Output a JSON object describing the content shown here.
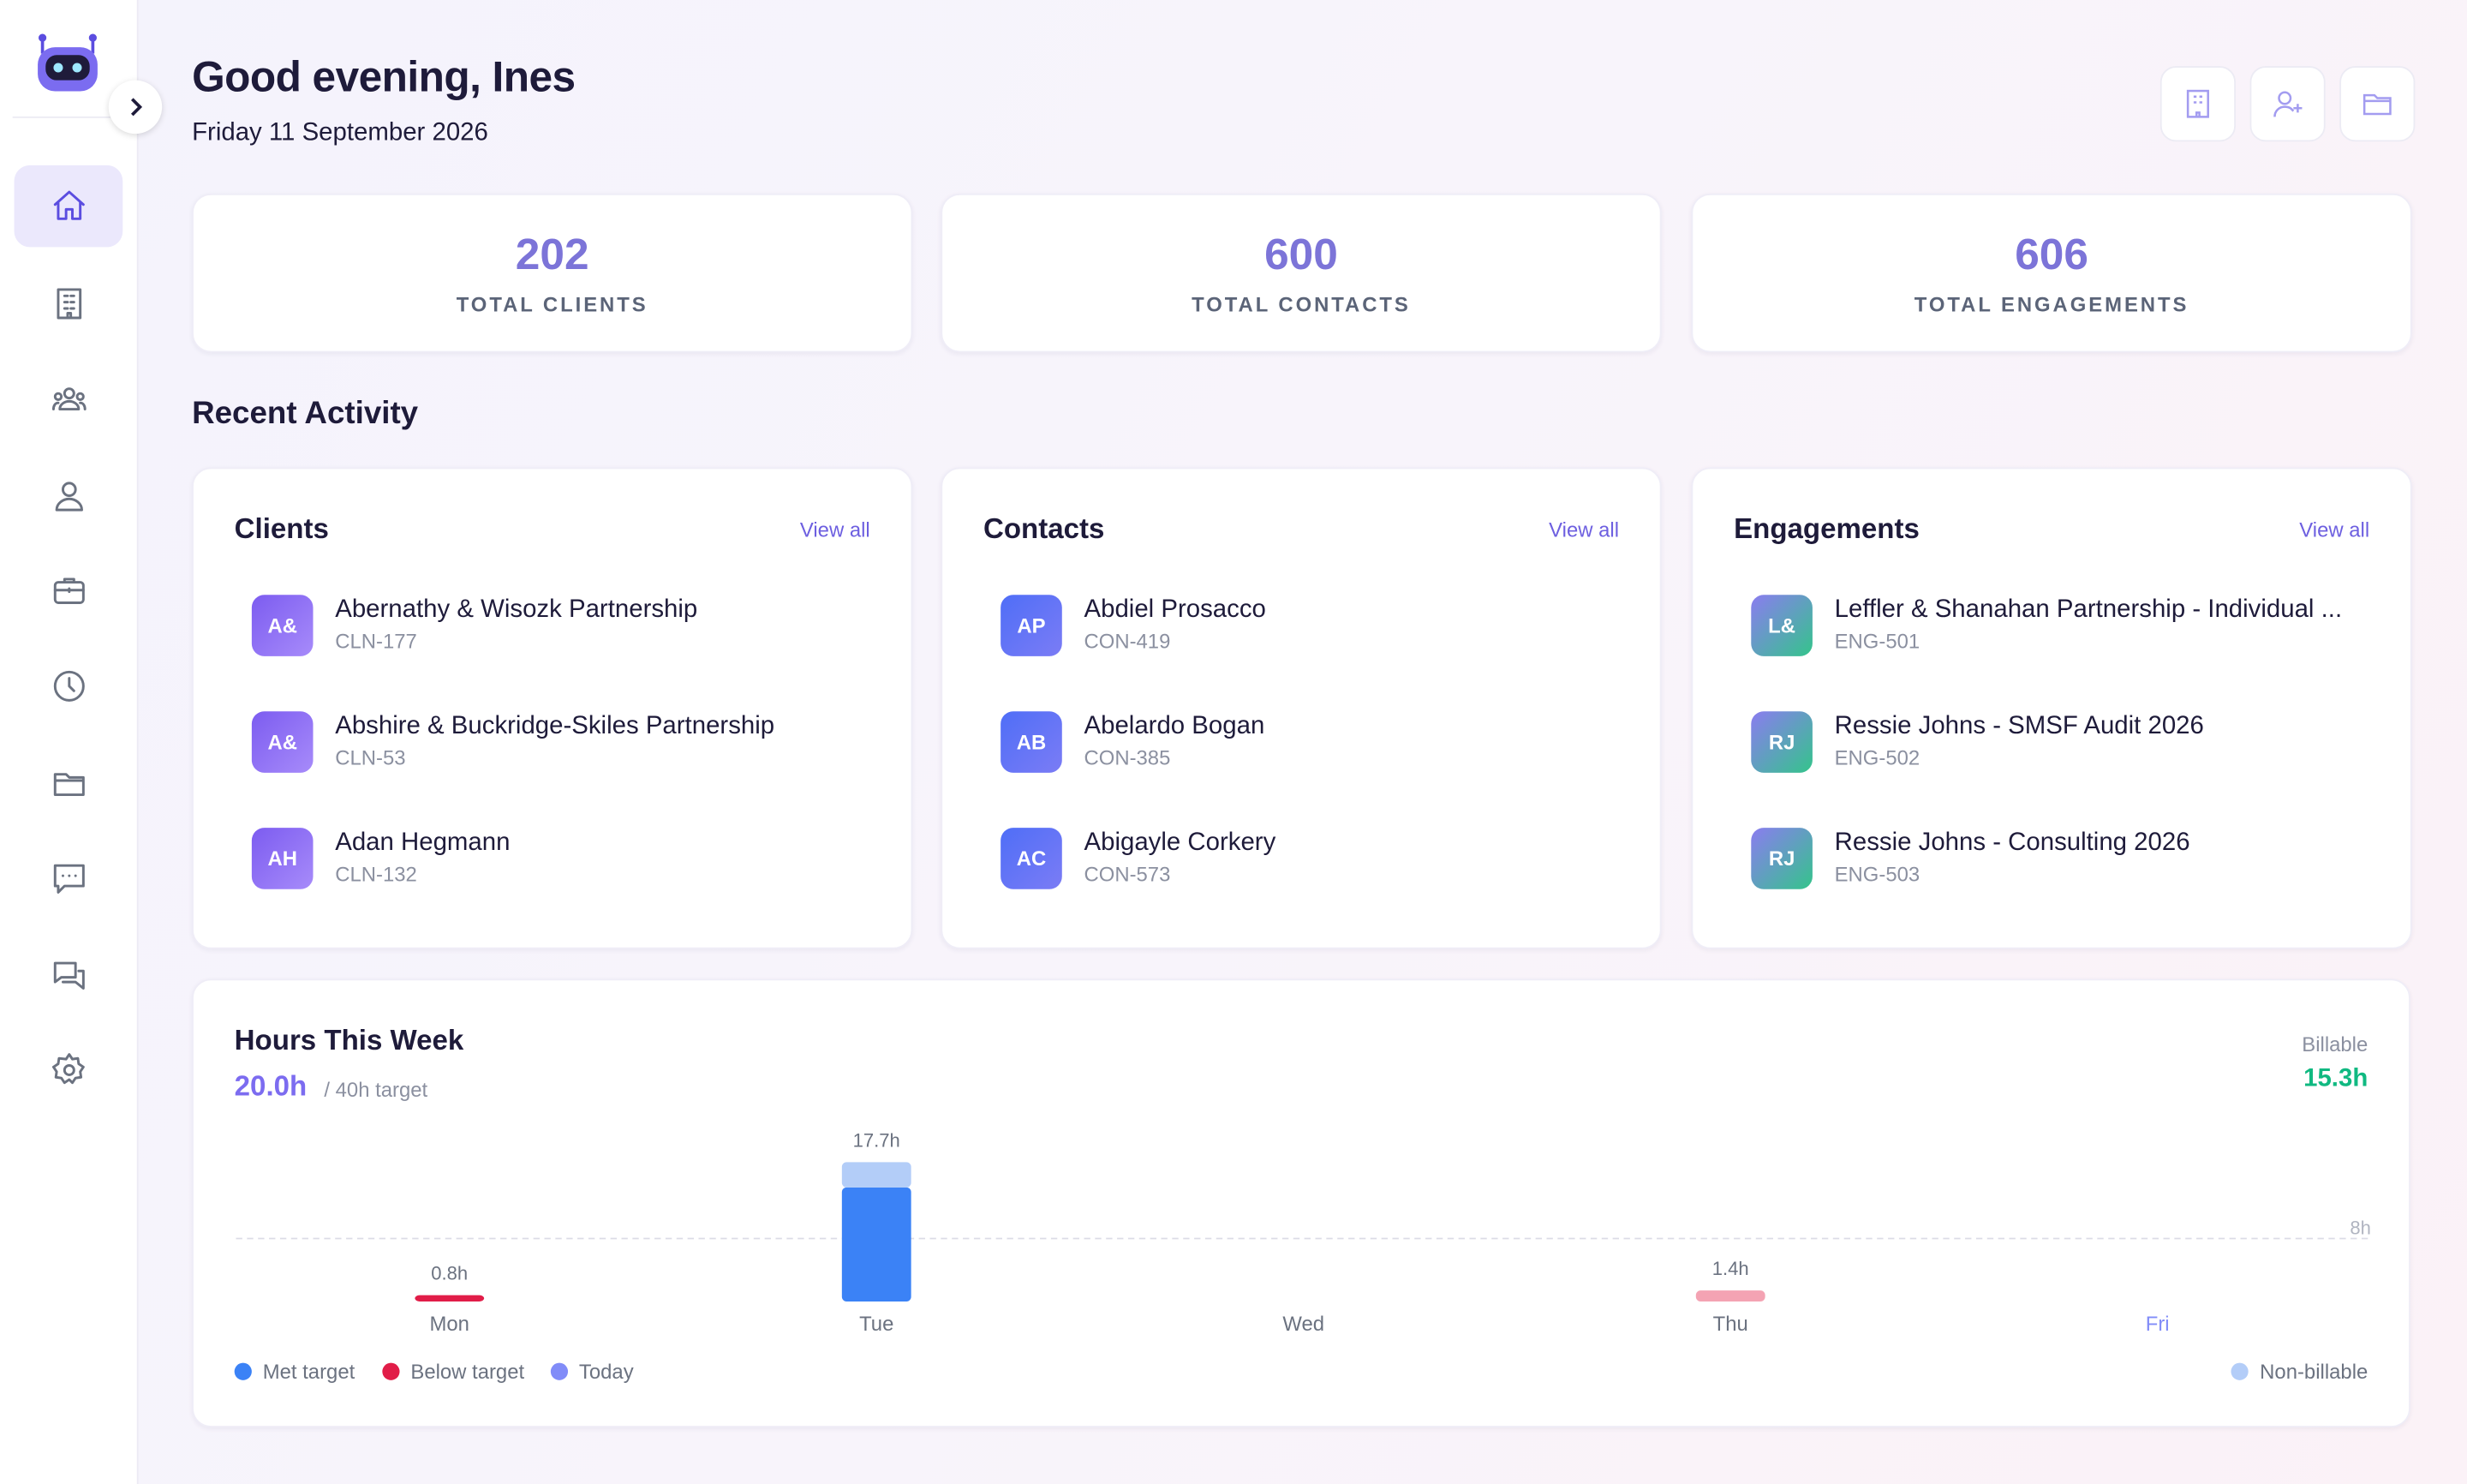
{
  "header": {
    "greeting": "Good evening, Ines",
    "date": "Friday 11 September 2026"
  },
  "stats": [
    {
      "value": 202,
      "label": "TOTAL CLIENTS"
    },
    {
      "value": 600,
      "label": "TOTAL CONTACTS"
    },
    {
      "value": 606,
      "label": "TOTAL ENGAGEMENTS"
    }
  ],
  "recent_activity": {
    "title": "Recent Activity",
    "panels": [
      {
        "title": "Clients",
        "link": "View all",
        "items": [
          {
            "initials": "A&",
            "name": "Abernathy & Wisozk Partnership",
            "code": "CLN-177"
          },
          {
            "initials": "A&",
            "name": "Abshire & Buckridge-Skiles Partnership",
            "code": "CLN-53"
          },
          {
            "initials": "AH",
            "name": "Adan Hegmann",
            "code": "CLN-132"
          }
        ]
      },
      {
        "title": "Contacts",
        "link": "View all",
        "items": [
          {
            "initials": "AP",
            "name": "Abdiel Prosacco",
            "code": "CON-419"
          },
          {
            "initials": "AB",
            "name": "Abelardo Bogan",
            "code": "CON-385"
          },
          {
            "initials": "AC",
            "name": "Abigayle Corkery",
            "code": "CON-573"
          }
        ]
      },
      {
        "title": "Engagements",
        "link": "View all",
        "items": [
          {
            "initials": "L&",
            "name": "Leffler & Shanahan Partnership - Individual ...",
            "code": "ENG-501"
          },
          {
            "initials": "RJ",
            "name": "Ressie Johns - SMSF Audit 2026",
            "code": "ENG-502"
          },
          {
            "initials": "RJ",
            "name": "Ressie Johns - Consulting 2026",
            "code": "ENG-503"
          }
        ]
      }
    ]
  },
  "chart_data": {
    "type": "bar",
    "title": "Hours This Week",
    "summary": "20.0h",
    "target": "/ 40h target",
    "billable_total": "15.3h",
    "categories": [
      "Mon",
      "Tue",
      "Wed",
      "Thu",
      "Fri"
    ],
    "values": [
      0.8,
      17.7,
      null,
      1.4,
      null
    ],
    "value_labels": [
      "0.8h",
      "17.7h",
      null,
      "1.4h",
      null
    ],
    "series": [
      {
        "name": "Billable",
        "color": "#3b82f6",
        "values": [
          0.8,
          14.5,
          null,
          null,
          null
        ],
        "colors": [
          "#e11d48",
          "#3b82f6",
          null,
          null,
          null
        ]
      },
      {
        "name": "Non-billable",
        "color": "#b3cdf8",
        "values": [
          null,
          3.2,
          null,
          1.4,
          null
        ],
        "colors": [
          null,
          "#b3cdf8",
          null,
          "#f4a3b3",
          null
        ]
      }
    ],
    "legend": [
      {
        "name": "Met target",
        "color": "#3b82f6"
      },
      {
        "name": "Below target",
        "color": "#e11d48"
      },
      {
        "name": "Today",
        "color": "#818cf8"
      }
    ],
    "today_index": 4,
    "ylim": [
      0,
      20
    ],
    "yticks": [
      {
        "value": 8,
        "label": "8h"
      }
    ],
    "grid": true
  }
}
